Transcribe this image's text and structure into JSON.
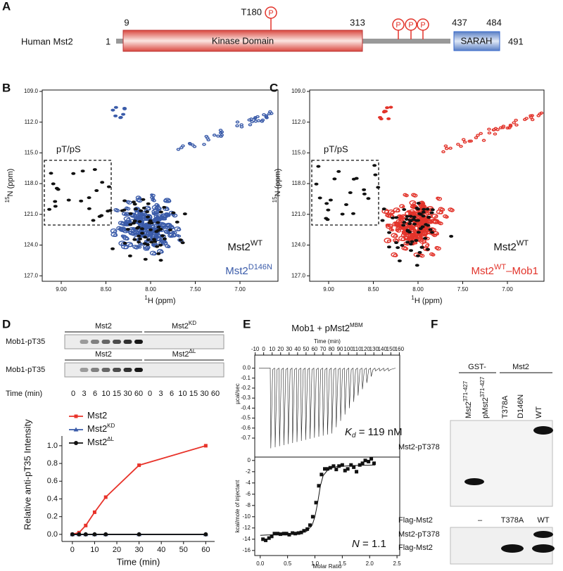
{
  "panel_a": {
    "letter": "A",
    "protein": "Human Mst2",
    "residue_start": "1",
    "residue_end": "491",
    "kinase_start": "9",
    "kinase_end": "313",
    "sarah_start": "437",
    "sarah_end": "484",
    "site": "T180",
    "phospho": "P",
    "kinase_label": "Kinase Domain",
    "sarah_label": "SARAH"
  },
  "panel_b": {
    "letter": "B",
    "y_axis_iso": "15",
    "y_axis": "N (ppm)",
    "x_axis_iso": "1",
    "x_axis": "H (ppm)",
    "yticks": [
      "109.0",
      "112.0",
      "115.0",
      "118.0",
      "121.0",
      "124.0",
      "127.0"
    ],
    "xticks": [
      "9.00",
      "8.50",
      "8.00",
      "7.50",
      "7.00"
    ],
    "region": "pT/pS",
    "ref": "Mst2",
    "ref_sup": "WT",
    "sample": "Mst2",
    "sample_sup": "D146N"
  },
  "panel_c": {
    "letter": "C",
    "y_axis_iso": "15",
    "y_axis": "N (ppm)",
    "x_axis_iso": "1",
    "x_axis": "H (ppm)",
    "yticks": [
      "109.0",
      "112.0",
      "115.0",
      "118.0",
      "121.0",
      "124.0",
      "127.0"
    ],
    "xticks": [
      "9.00",
      "8.50",
      "8.00",
      "7.50",
      "7.00"
    ],
    "region": "pT/pS",
    "ref": "Mst2",
    "ref_sup": "WT",
    "sample": "Mst2",
    "sample_sup": "WT",
    "sample_suffix": "–Mob1"
  },
  "panel_d": {
    "letter": "D",
    "rows": [
      "Mob1-pT35",
      "Mob1-pT35"
    ],
    "groups": [
      {
        "name": "Mst2"
      },
      {
        "name": "Mst2",
        "sup": "KD"
      },
      {
        "name": "Mst2"
      },
      {
        "name": "Mst2",
        "sup": "ΔL"
      }
    ],
    "time_label": "Time (min)",
    "times": [
      "0",
      "3",
      "6",
      "10",
      "15",
      "30",
      "60"
    ]
  },
  "panel_e": {
    "letter": "E",
    "title": "Mob1 + pMst2",
    "title_sup": "MBM",
    "kd_symbol": "K",
    "kd_sub": "d",
    "kd_value": " = 119 nM",
    "n_symbol": "N",
    "n_value": " = 1.1"
  },
  "panel_f": {
    "letter": "F",
    "gst": "GST-",
    "mst2": "Mst2",
    "lanes": [
      "Mst2",
      "pMst2",
      "T378A",
      "D146N",
      "WT"
    ],
    "lane_sup": "371-427",
    "blot1": "Mst2-pT378",
    "flag_row": "Flag-Mst2",
    "flag_lanes": [
      "–",
      "T378A",
      "WT"
    ],
    "blot2": [
      "Mst2-pT378",
      "Flag-Mst2"
    ]
  },
  "chart_data": [
    {
      "type": "line",
      "x_label": "Time (min)",
      "y_label": "Relative anti-pT35 Intensity",
      "x": [
        0,
        3,
        6,
        10,
        15,
        30,
        60
      ],
      "xlim": [
        -4.7,
        64
      ],
      "ylim": [
        -0.08,
        1.11
      ],
      "xticks": [
        0,
        10,
        20,
        30,
        40,
        50,
        60
      ],
      "yticks": [
        {
          "value": 0,
          "label": "0.0"
        },
        0.2,
        0.4,
        0.6,
        0.8,
        {
          "value": 1,
          "label": "1.0"
        }
      ],
      "legend": "upper left",
      "series": [
        {
          "name": "Mst2",
          "color": "#e8332a",
          "marker": "square",
          "values": [
            0,
            0.02,
            0.1,
            0.25,
            0.42,
            0.78,
            1.0
          ]
        },
        {
          "name": "Mst2",
          "name_sup": "KD",
          "color": "#3a5ba9",
          "marker": "triangle",
          "values": [
            0,
            0,
            0,
            0,
            0,
            0,
            0
          ]
        },
        {
          "name": "Mst2",
          "name_sup": "ΔL",
          "color": "#111111",
          "marker": "circle",
          "values": [
            0,
            0,
            0,
            0,
            0,
            0,
            0
          ]
        }
      ]
    },
    {
      "type": "itc-raw",
      "x_label": "Time (min)",
      "y_label": "µcal/sec",
      "xlim": [
        -10.5,
        160.5
      ],
      "ylim": [
        -0.89,
        0.13
      ],
      "xticks": [
        -10,
        0,
        10,
        20,
        30,
        40,
        50,
        60,
        70,
        80,
        90,
        100,
        110,
        120,
        130,
        140,
        150,
        160
      ],
      "yticks": [
        {
          "value": 0,
          "label": "0.0"
        },
        -0.1,
        -0.2,
        -0.3,
        -0.4,
        -0.5,
        -0.6,
        -0.7
      ]
    },
    {
      "type": "scatter",
      "x_label": "Molar Ratio",
      "y_label": "kcal/mole of injectant",
      "xlim": [
        -0.1,
        2.55
      ],
      "ylim": [
        -16.9,
        0.6
      ],
      "xticks": [
        {
          "value": 0,
          "label": "0.0"
        },
        0.5,
        {
          "value": 1,
          "label": "1.0"
        },
        1.5,
        {
          "value": 2,
          "label": "2.0"
        },
        2.5
      ],
      "yticks": [
        0,
        -2,
        -4,
        -6,
        -8,
        -10,
        -12,
        -14,
        -16
      ],
      "series": [
        {
          "color": "#111111",
          "marker": "square",
          "x": [
            0.05,
            0.1,
            0.16,
            0.21,
            0.26,
            0.32,
            0.37,
            0.43,
            0.48,
            0.53,
            0.59,
            0.64,
            0.7,
            0.75,
            0.8,
            0.86,
            0.91,
            0.96,
            1.02,
            1.07,
            1.12,
            1.18,
            1.23,
            1.28,
            1.34,
            1.39,
            1.44,
            1.5,
            1.55,
            1.6,
            1.66,
            1.71,
            1.76,
            1.82,
            1.87,
            1.92,
            1.98,
            2.03,
            2.08
          ],
          "values": [
            -14,
            -14.2,
            -13.8,
            -13.5,
            -13,
            -13,
            -13.1,
            -13,
            -13,
            -13.2,
            -12.9,
            -13,
            -12.9,
            -12.8,
            -12.5,
            -12.2,
            -11.5,
            -10,
            -7.5,
            -4.5,
            -2.5,
            -1.5,
            -1.5,
            -1.3,
            -1,
            -1.6,
            -1,
            -0.8,
            -1.8,
            -1.5,
            -0.8,
            -1.2,
            -2,
            -0.8,
            -0.5,
            0,
            -0.2,
            0.3,
            -0.5
          ]
        },
        {
          "color": "#111111",
          "style": "line",
          "x": [
            0,
            0.7,
            0.85,
            0.95,
            1.0,
            1.05,
            1.1,
            1.15,
            1.25,
            1.4,
            1.7,
            2.1
          ],
          "values": [
            -13.3,
            -13,
            -12.6,
            -11.5,
            -10,
            -7.5,
            -4.5,
            -2.7,
            -1.5,
            -1.1,
            -0.9,
            -0.8
          ]
        }
      ]
    }
  ]
}
